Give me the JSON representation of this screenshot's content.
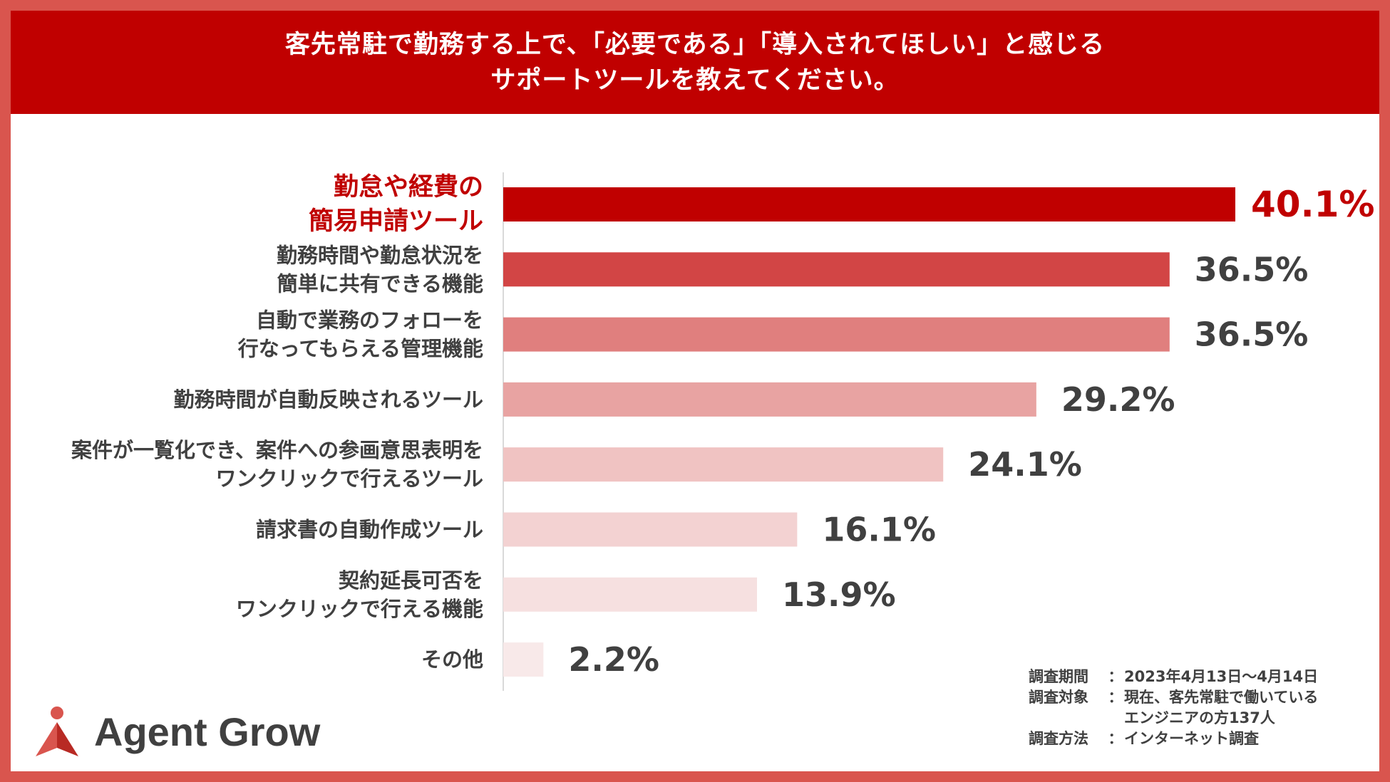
{
  "title": {
    "line1": "客先常駐で勤務する上で、「必要である」「導入されてほしい」と感じる",
    "line2": "サポートツールを教えてください。"
  },
  "chart_data": {
    "type": "bar",
    "orientation": "horizontal",
    "unit": "%",
    "categories": [
      [
        "勤怠や経費の",
        "簡易申請ツール"
      ],
      [
        "勤務時間や勤怠状況を",
        "簡単に共有できる機能"
      ],
      [
        "自動で業務のフォローを",
        "行なってもらえる管理機能"
      ],
      [
        "勤務時間が自動反映されるツール"
      ],
      [
        "案件が一覧化でき、案件への参画意思表明を",
        "ワンクリックで行えるツール"
      ],
      [
        "請求書の自動作成ツール"
      ],
      [
        "契約延長可否を",
        "ワンクリックで行える機能"
      ],
      [
        "その他"
      ]
    ],
    "values": [
      40.1,
      36.5,
      36.5,
      29.2,
      24.1,
      16.1,
      13.9,
      2.2
    ],
    "value_labels": [
      "40.1%",
      "36.5%",
      "36.5%",
      "29.2%",
      "24.1%",
      "16.1%",
      "13.9%",
      "2.2%"
    ],
    "bar_colors": [
      "#c00000",
      "#d24545",
      "#e07f7e",
      "#e8a3a2",
      "#f0c3c2",
      "#f3d2d2",
      "#f6e0e0",
      "#f8e9e9"
    ],
    "highlight_color": "#c00000",
    "label_color": "#404040",
    "xlim": [
      0,
      40.1
    ],
    "grid": false
  },
  "survey_notes": [
    {
      "key": "調査期間",
      "sep": "：",
      "value": "2023年4月13日〜4月14日"
    },
    {
      "key": "調査対象",
      "sep": "：",
      "value": "現在、客先常駐で働いている"
    },
    {
      "key": "",
      "sep": "",
      "value": "エンジニアの方137人"
    },
    {
      "key": "調査方法",
      "sep": "：",
      "value": "インターネット調査"
    }
  ],
  "logo": {
    "text": "Agent Grow",
    "mark_color": "#d9554e",
    "mark_dark_color": "#b82a24"
  },
  "colors": {
    "frame": "#d9554e",
    "banner": "#c00000"
  }
}
